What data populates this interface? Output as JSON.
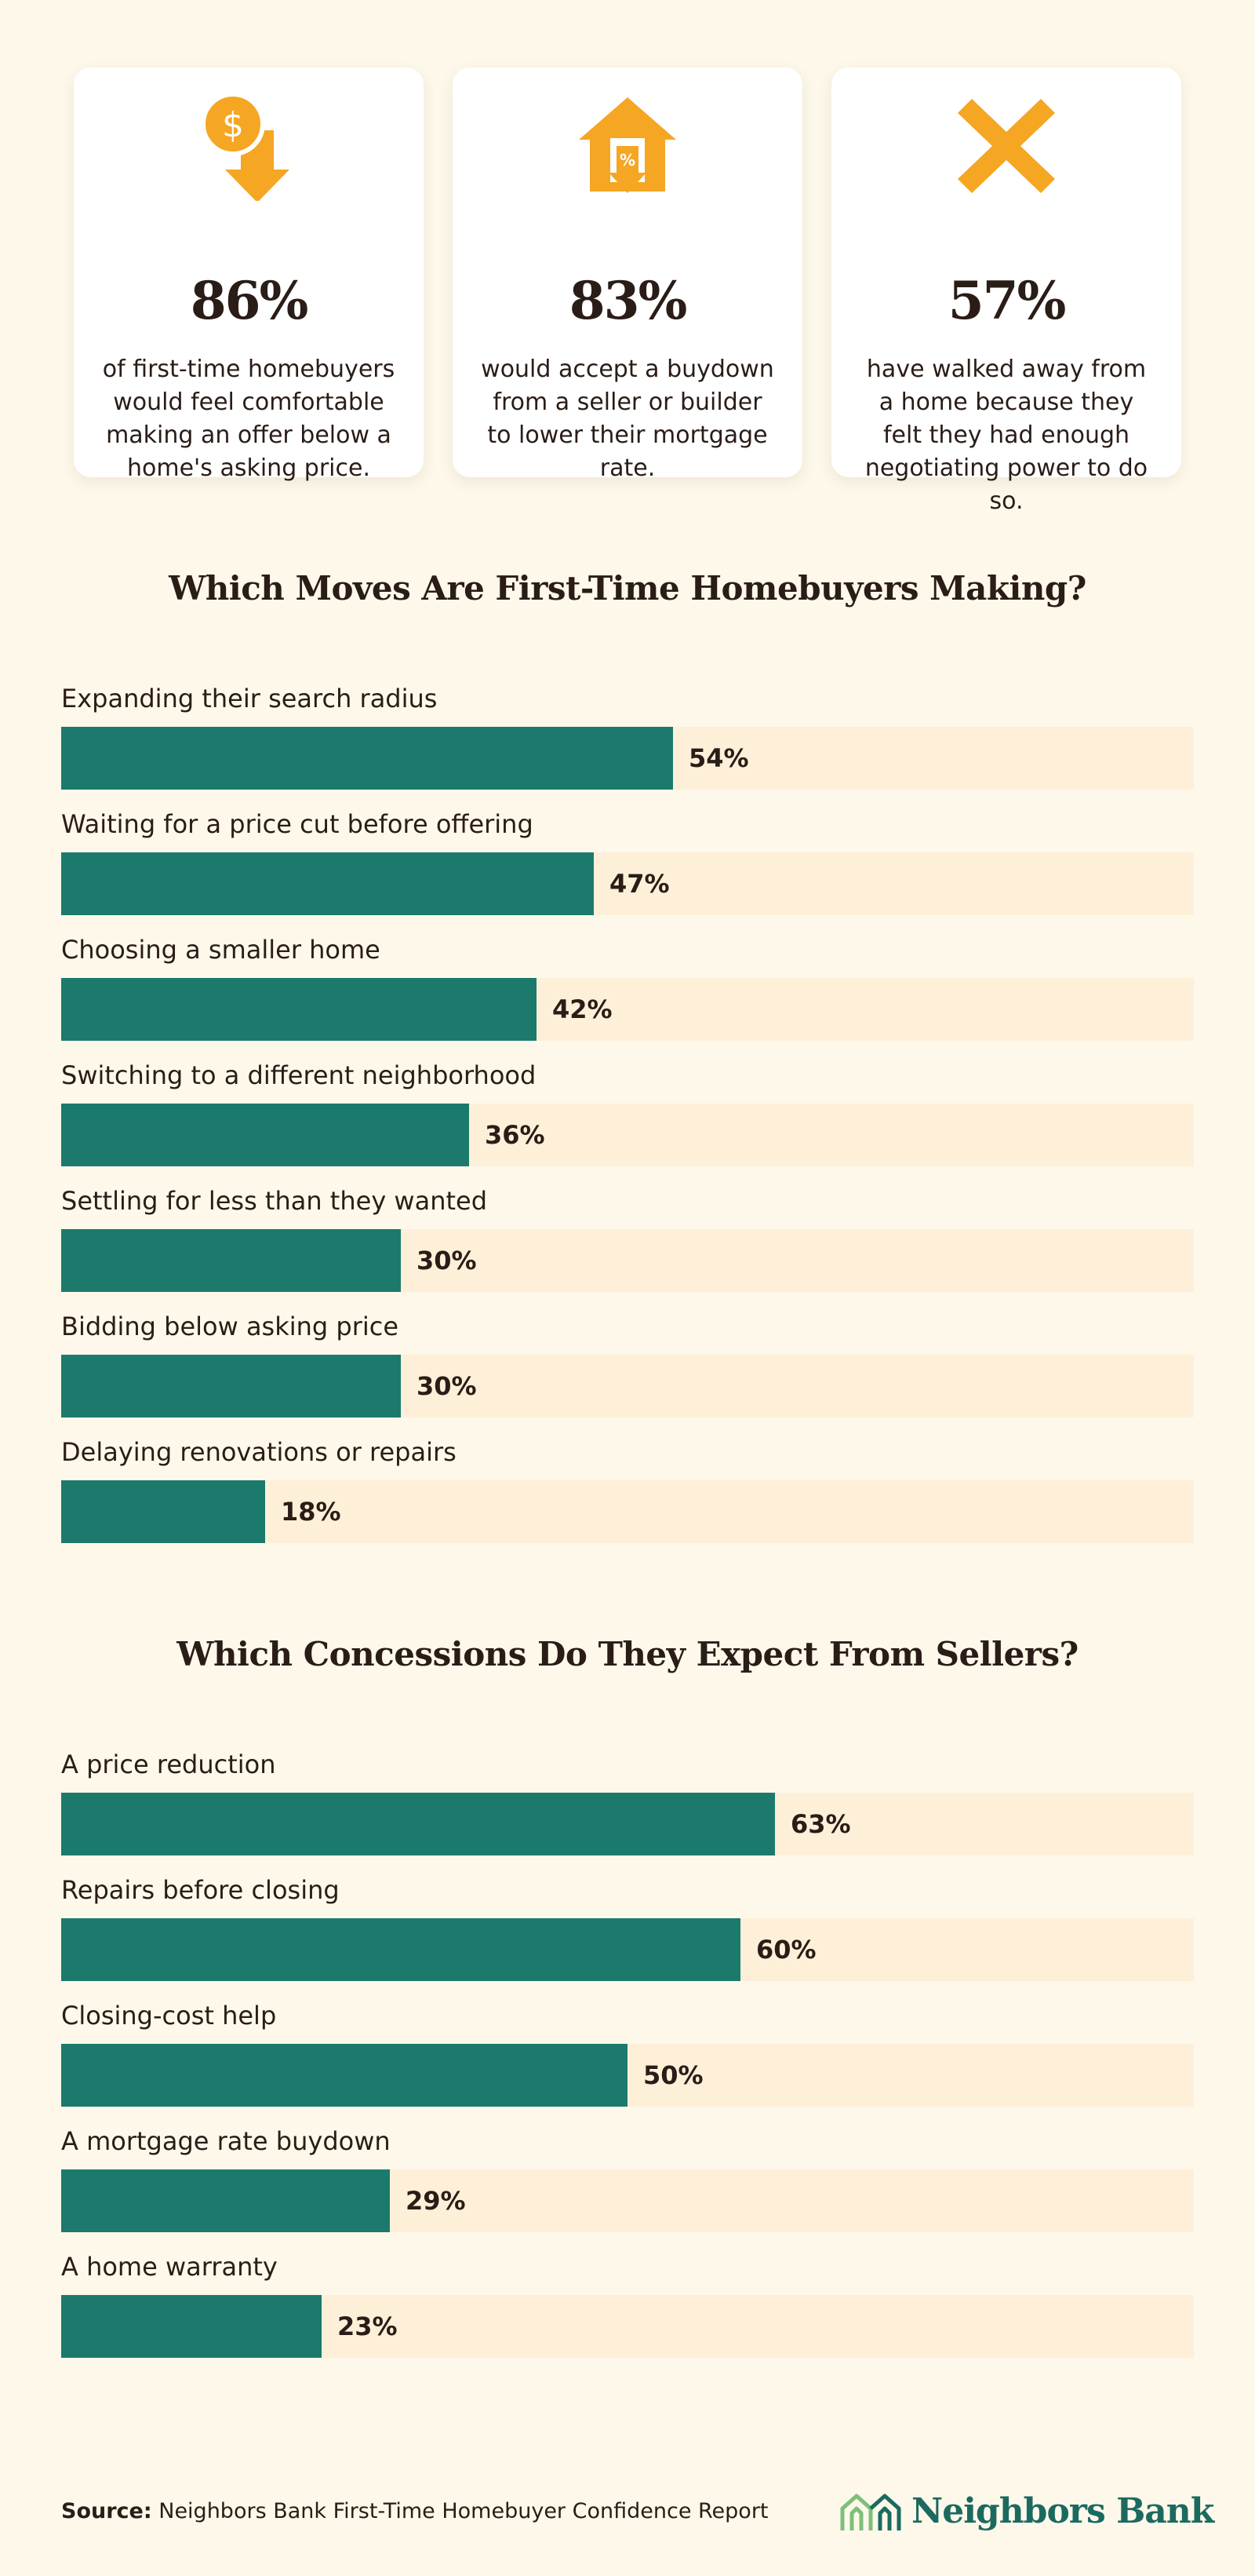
{
  "colors": {
    "background": "#fdf8ea",
    "card": "#ffffff",
    "icon_accent": "#f5a623",
    "bar_fill": "#1b7a6c",
    "bar_track": "#fef0d8",
    "text": "#2a1c16",
    "brand": "#1b6a60"
  },
  "stats": [
    {
      "icon": "dollar-down-arrow-icon",
      "value": "86%",
      "text": "of first-time homebuyers would feel comfortable making an offer below a home's asking price."
    },
    {
      "icon": "house-percent-down-arrow-icon",
      "value": "83%",
      "text": "would accept a buydown from a seller or builder to lower their mortgage rate."
    },
    {
      "icon": "x-mark-icon",
      "value": "57%",
      "text": "have walked away from a home because they felt they had enough negotiating power to do so."
    }
  ],
  "chart_data": [
    {
      "type": "bar",
      "orientation": "horizontal",
      "title": "Which Moves Are First-Time Homebuyers Making?",
      "xlim": [
        0,
        100
      ],
      "categories": [
        "Expanding their search radius",
        "Waiting for a price cut before offering",
        "Choosing a smaller home",
        "Switching to a different neighborhood",
        "Settling for less than they wanted",
        "Bidding below asking price",
        "Delaying renovations or repairs"
      ],
      "values": [
        54,
        47,
        42,
        36,
        30,
        30,
        18
      ],
      "value_labels": [
        "54%",
        "47%",
        "42%",
        "36%",
        "30%",
        "30%",
        "18%"
      ]
    },
    {
      "type": "bar",
      "orientation": "horizontal",
      "title": "Which Concessions Do They Expect From Sellers?",
      "xlim": [
        0,
        100
      ],
      "categories": [
        "A price reduction",
        "Repairs before closing",
        "Closing-cost help",
        "A mortgage rate buydown",
        "A home warranty"
      ],
      "values": [
        63,
        60,
        50,
        29,
        23
      ],
      "value_labels": [
        "63%",
        "60%",
        "50%",
        "29%",
        "23%"
      ]
    }
  ],
  "footer": {
    "source_label": "Source:",
    "source_text": "Neighbors Bank First-Time Homebuyer Confidence Report",
    "brand_name": "Neighbors Bank",
    "brand_icon": "neighbors-bank-logo-icon"
  }
}
